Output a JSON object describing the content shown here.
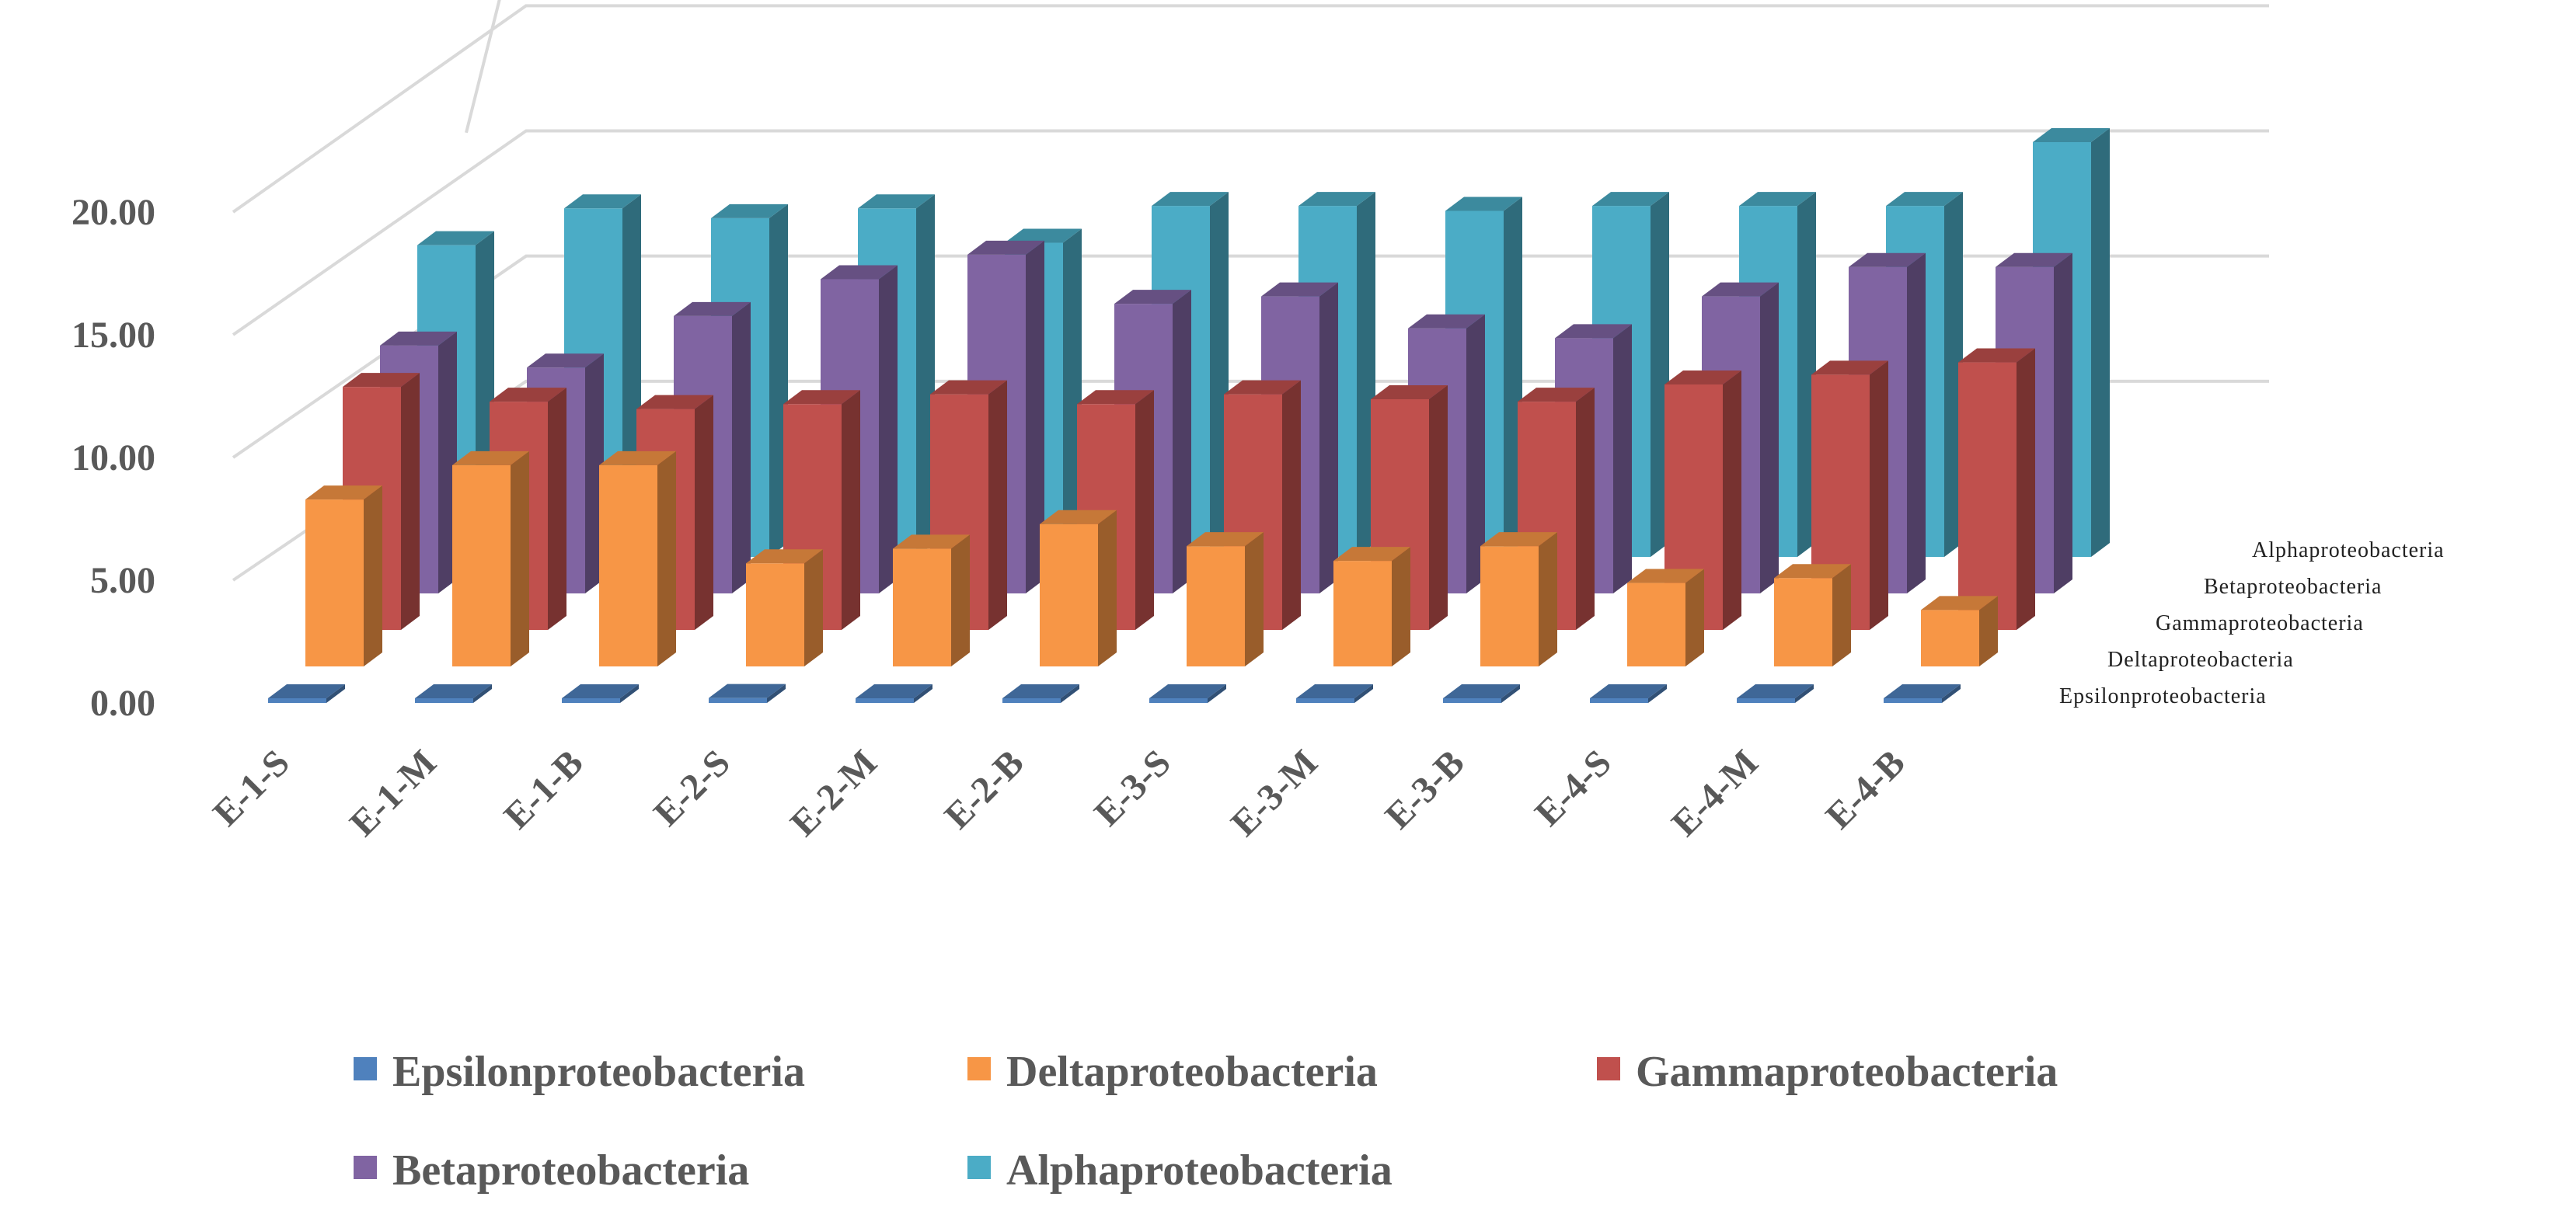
{
  "chart_data": {
    "type": "bar",
    "categories": [
      "E-1-S",
      "E-1-M",
      "E-1-B",
      "E-2-S",
      "E-2-M",
      "E-2-B",
      "E-3-S",
      "E-3-M",
      "E-3-B",
      "E-4-S",
      "E-4-M",
      "E-4-B"
    ],
    "series": [
      {
        "name": "Epsilonproteobacteria",
        "color": "#4F81BD",
        "values": [
          0.1,
          0.05,
          0.05,
          0.2,
          0.05,
          0.1,
          0.1,
          0.1,
          0.05,
          0.05,
          0.1,
          0.1
        ]
      },
      {
        "name": "Deltaproteobacteria",
        "color": "#F79646",
        "values": [
          6.8,
          8.2,
          8.2,
          4.2,
          4.8,
          5.8,
          4.9,
          4.3,
          4.9,
          3.4,
          3.6,
          2.3
        ]
      },
      {
        "name": "Gammaproteobacteria",
        "color": "#C0504D",
        "values": [
          9.9,
          9.3,
          9.0,
          9.2,
          9.6,
          9.2,
          9.6,
          9.4,
          9.3,
          10.0,
          10.4,
          10.9
        ]
      },
      {
        "name": "Betaproteobacteria",
        "color": "#8064A2",
        "values": [
          10.1,
          9.2,
          11.3,
          12.8,
          13.8,
          11.8,
          12.1,
          10.8,
          10.4,
          12.1,
          13.3,
          13.3
        ]
      },
      {
        "name": "Alphaproteobacteria",
        "color": "#4BACC6",
        "values": [
          12.7,
          14.2,
          13.8,
          14.2,
          12.8,
          14.3,
          14.3,
          14.1,
          14.3,
          14.3,
          14.3,
          16.9
        ]
      }
    ],
    "title": "",
    "xlabel": "",
    "ylabel": "",
    "ylim": [
      0,
      20
    ],
    "yticks": [
      "0.00",
      "5.00",
      "10.00",
      "15.00",
      "20.00"
    ],
    "grid": true,
    "legend_position": "bottom"
  }
}
